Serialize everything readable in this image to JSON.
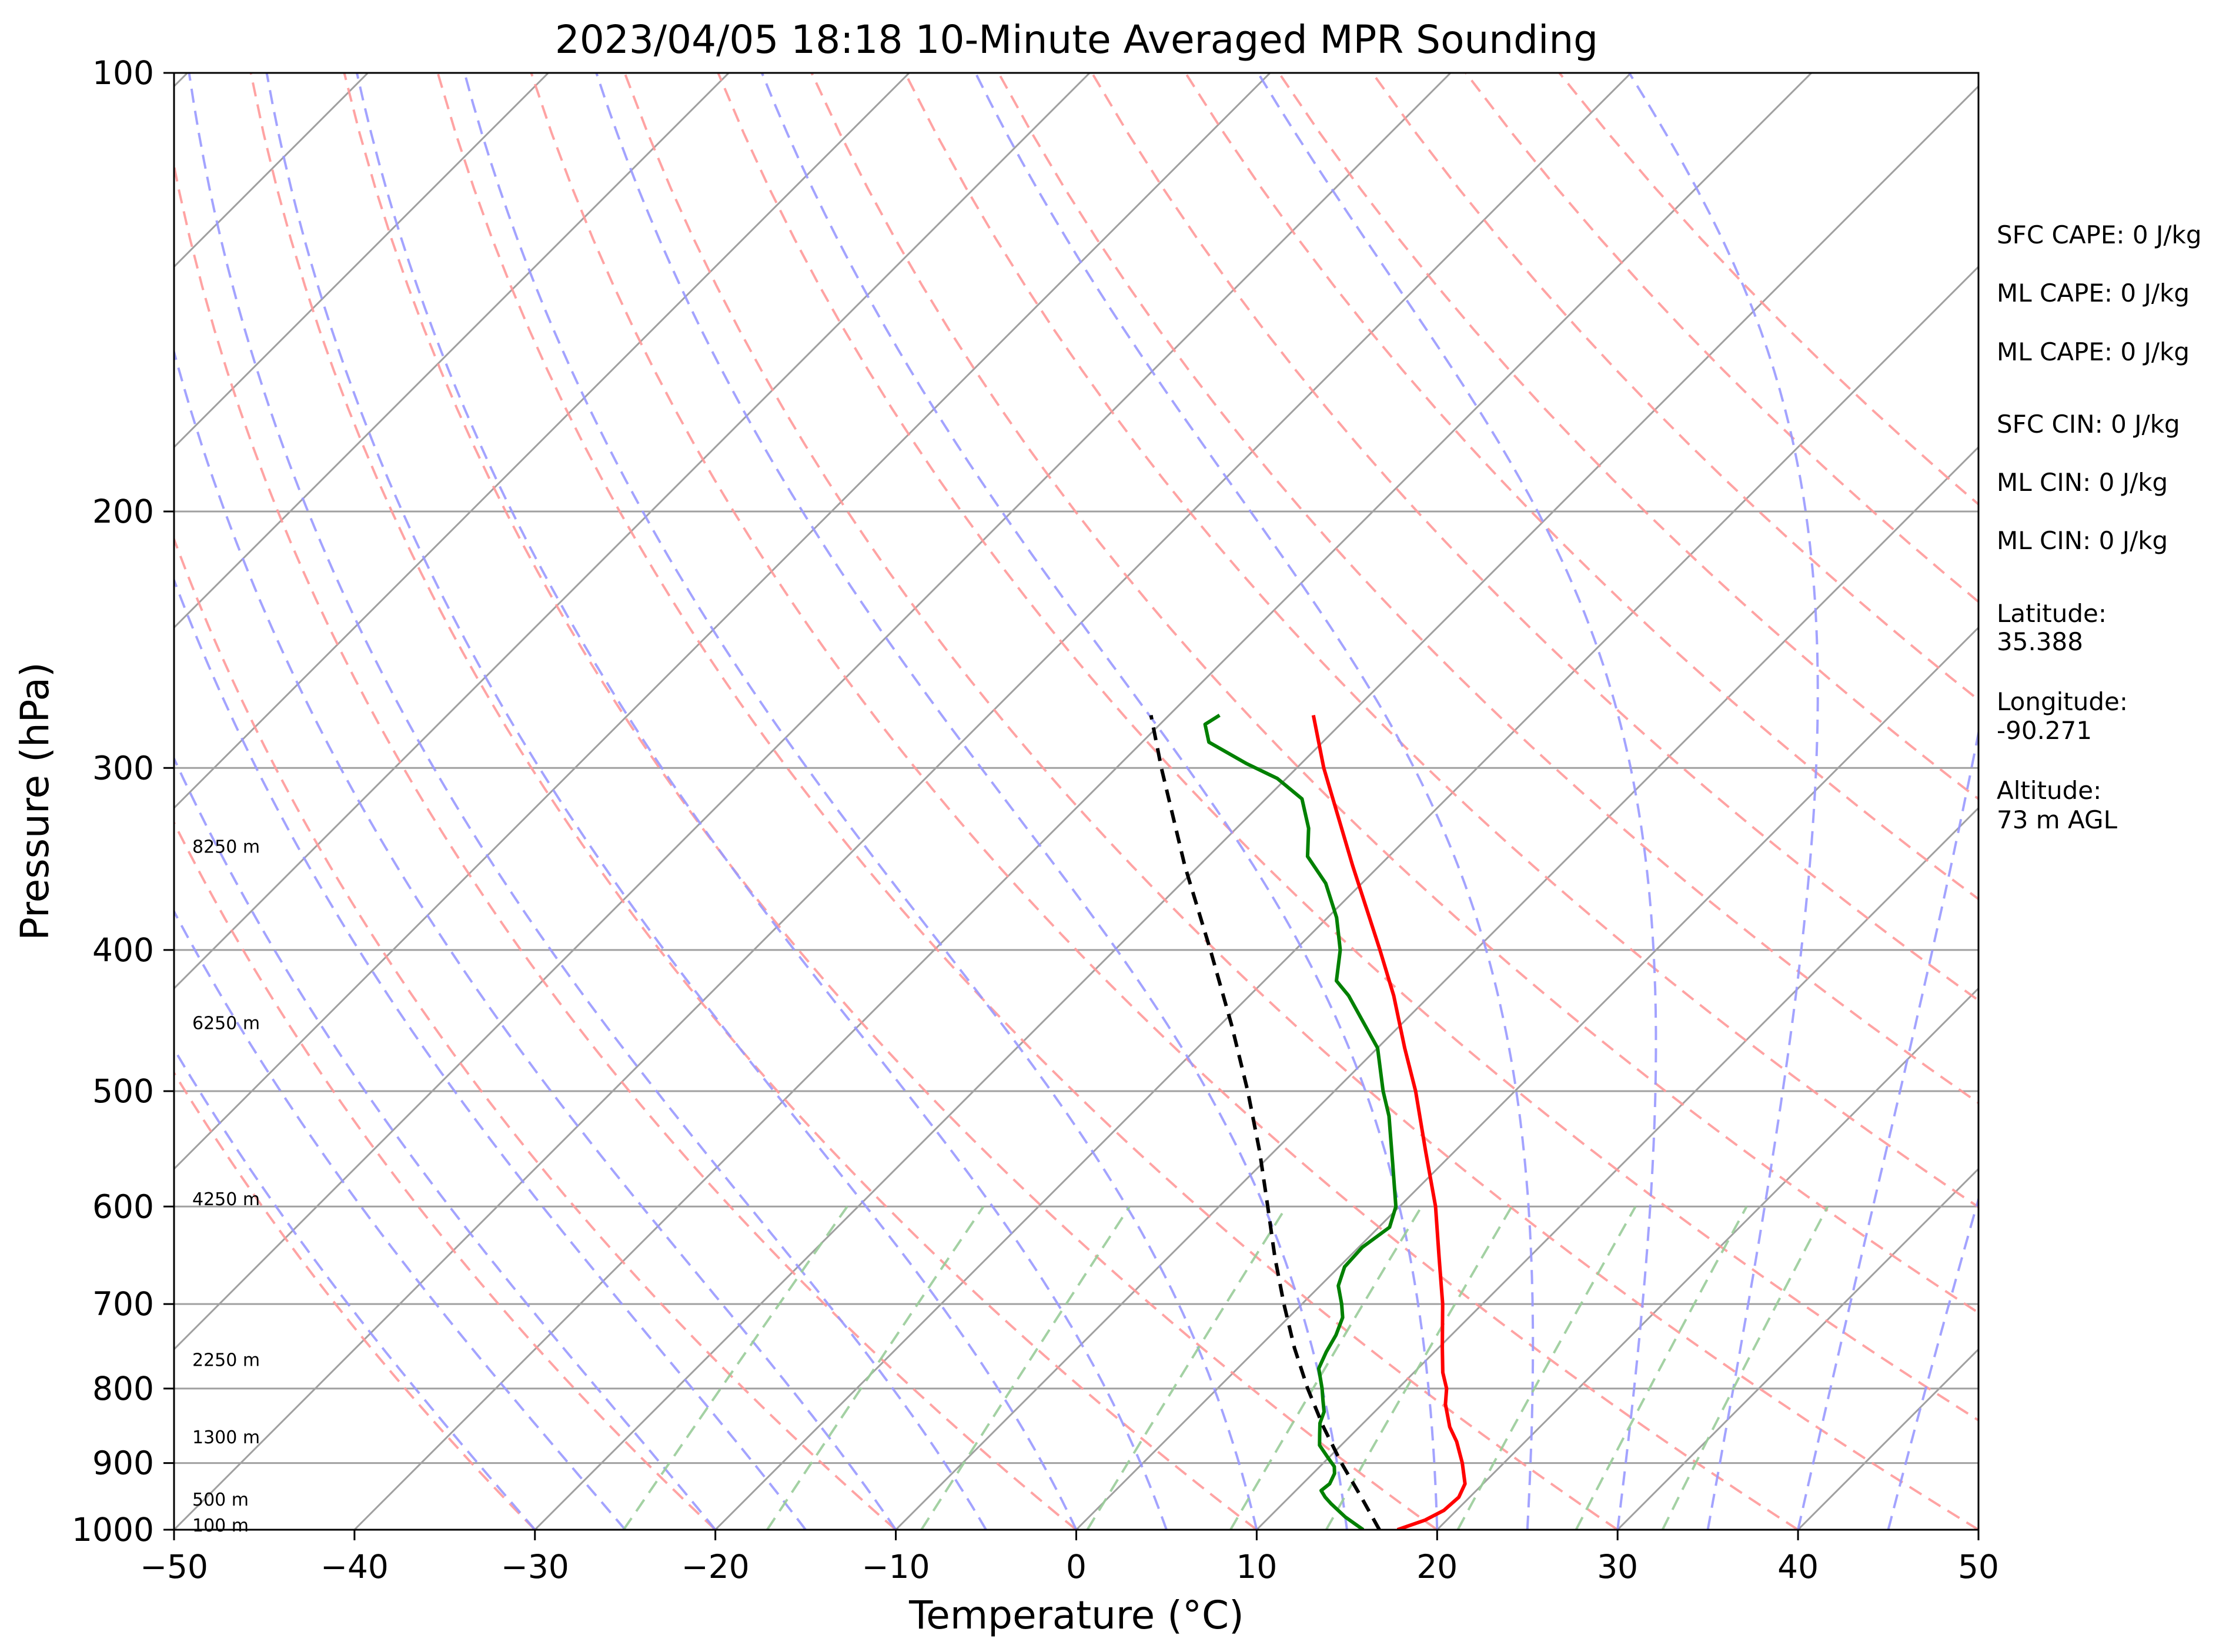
{
  "chart_data": {
    "type": "line",
    "title": "2023/04/05 18:18 10-Minute Averaged MPR Sounding",
    "xlabel": "Temperature (°C)",
    "ylabel": "Pressure (hPa)",
    "xlim": [
      -50,
      50
    ],
    "ylim": [
      1000,
      100
    ],
    "y_scale": "log",
    "skew_t": true,
    "grid": true,
    "x_ticks": [
      "−50",
      "−40",
      "−30",
      "−20",
      "−10",
      "0",
      "10",
      "20",
      "30",
      "40",
      "50"
    ],
    "y_ticks": [
      "100",
      "200",
      "300",
      "400",
      "500",
      "600",
      "700",
      "800",
      "900",
      "1000"
    ],
    "series": [
      {
        "role": "temperature",
        "color": "#ff0000",
        "style": "solid",
        "points": [
          [
            1000,
            17.8
          ],
          [
            985,
            18.8
          ],
          [
            970,
            19.3
          ],
          [
            950,
            19.4
          ],
          [
            930,
            19.0
          ],
          [
            900,
            17.7
          ],
          [
            870,
            16.2
          ],
          [
            850,
            15.0
          ],
          [
            820,
            13.5
          ],
          [
            800,
            12.7
          ],
          [
            780,
            11.6
          ],
          [
            750,
            10.2
          ],
          [
            700,
            7.8
          ],
          [
            650,
            5.0
          ],
          [
            600,
            2.0
          ],
          [
            550,
            -1.6
          ],
          [
            500,
            -5.5
          ],
          [
            467,
            -8.5
          ],
          [
            430,
            -12.0
          ],
          [
            400,
            -15.3
          ],
          [
            350,
            -21.5
          ],
          [
            300,
            -28.5
          ],
          [
            276,
            -32.0
          ]
        ]
      },
      {
        "role": "dewpoint",
        "color": "#008000",
        "style": "solid",
        "points": [
          [
            1000,
            15.9
          ],
          [
            980,
            14.2
          ],
          [
            960,
            12.7
          ],
          [
            950,
            12.0
          ],
          [
            940,
            11.4
          ],
          [
            930,
            11.5
          ],
          [
            915,
            11.2
          ],
          [
            905,
            10.8
          ],
          [
            890,
            9.8
          ],
          [
            875,
            8.8
          ],
          [
            860,
            8.2
          ],
          [
            845,
            7.6
          ],
          [
            830,
            7.2
          ],
          [
            815,
            6.5
          ],
          [
            800,
            5.8
          ],
          [
            775,
            4.5
          ],
          [
            755,
            4.0
          ],
          [
            735,
            3.6
          ],
          [
            715,
            3.0
          ],
          [
            700,
            2.2
          ],
          [
            680,
            1.0
          ],
          [
            660,
            0.3
          ],
          [
            640,
            0.2
          ],
          [
            620,
            0.6
          ],
          [
            600,
            -0.2
          ],
          [
            560,
            -2.8
          ],
          [
            520,
            -5.6
          ],
          [
            500,
            -7.3
          ],
          [
            467,
            -10.0
          ],
          [
            430,
            -14.5
          ],
          [
            420,
            -16.0
          ],
          [
            400,
            -17.5
          ],
          [
            380,
            -19.5
          ],
          [
            360,
            -22.0
          ],
          [
            345,
            -24.5
          ],
          [
            330,
            -26.0
          ],
          [
            315,
            -28.0
          ],
          [
            305,
            -30.5
          ],
          [
            298,
            -33.0
          ],
          [
            288,
            -36.3
          ],
          [
            280,
            -37.5
          ],
          [
            276,
            -37.2
          ]
        ]
      },
      {
        "role": "parcel",
        "color": "#000000",
        "style": "dashed",
        "points": [
          [
            1000,
            16.8
          ],
          [
            950,
            14.0
          ],
          [
            900,
            11.0
          ],
          [
            850,
            8.0
          ],
          [
            800,
            5.0
          ],
          [
            750,
            2.0
          ],
          [
            700,
            -1.0
          ],
          [
            650,
            -4.1
          ],
          [
            600,
            -7.3
          ],
          [
            550,
            -10.8
          ],
          [
            500,
            -14.8
          ],
          [
            450,
            -19.4
          ],
          [
            400,
            -24.7
          ],
          [
            350,
            -30.8
          ],
          [
            300,
            -37.5
          ],
          [
            276,
            -41.0
          ]
        ]
      }
    ],
    "height_labels": [
      {
        "text": "100 m",
        "pressure": 1000
      },
      {
        "text": "500 m",
        "pressure": 960
      },
      {
        "text": "1300 m",
        "pressure": 870
      },
      {
        "text": "2250 m",
        "pressure": 770
      },
      {
        "text": "4250 m",
        "pressure": 597
      },
      {
        "text": "6250 m",
        "pressure": 452
      },
      {
        "text": "8250 m",
        "pressure": 342
      }
    ],
    "annotations": [
      "SFC CAPE: 0 J/kg",
      "ML CAPE: 0 J/kg",
      "ML CAPE: 0 J/kg",
      "SFC CIN: 0 J/kg",
      "ML CIN: 0 J/kg",
      "ML CIN: 0 J/kg",
      "Latitude:",
      "35.388",
      "Longitude:",
      "-90.271",
      "Altitude:",
      "73 m AGL"
    ],
    "colors": {
      "dry_adiabats": "#ff9999",
      "moist_adiabats": "#9999ff",
      "mixing_ratio": "#99cc99",
      "isotherms": "#a0a0a0",
      "isobars": "#a0a0a0"
    }
  }
}
